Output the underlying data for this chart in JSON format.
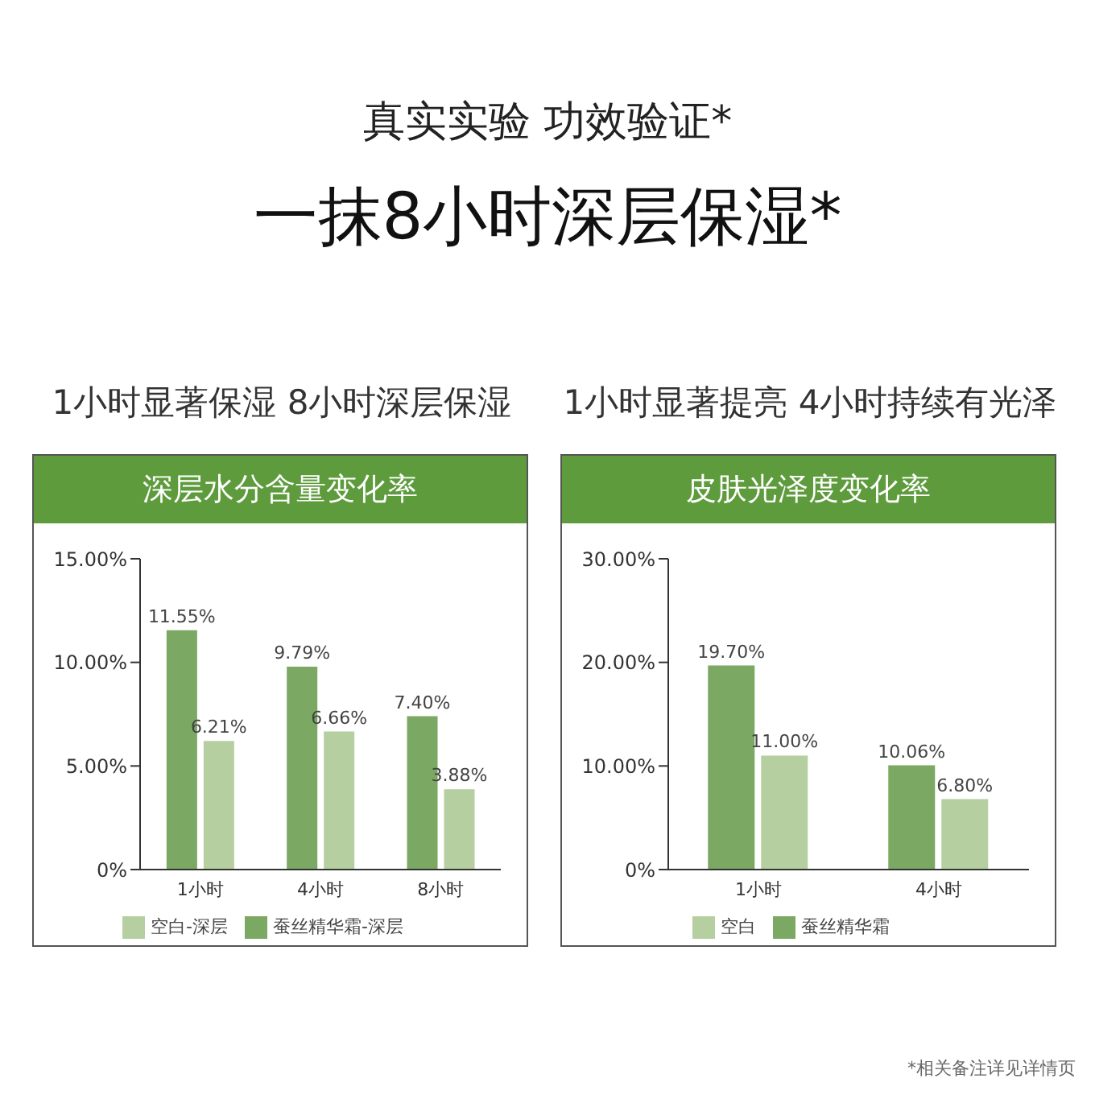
{
  "chart_data": [
    {
      "type": "other",
      "title": "真实实验 功效验证*",
      "subtitle": "一抹8小时深层保湿*"
    },
    {
      "type": "bar",
      "title": "深层水分含量变化率",
      "subtitle": "1小时显著保湿 8小时深层保湿",
      "categories": [
        "1小时",
        "4小时",
        "8小时"
      ],
      "series": [
        {
          "name": "蚕丝精华霜-深层",
          "color": "#7ba862",
          "values": [
            11.55,
            9.79,
            7.4
          ],
          "value_labels": [
            "11.55%",
            "9.79%",
            "7.40%"
          ]
        },
        {
          "name": "空白-深层",
          "color": "#b6cfa0",
          "values": [
            6.21,
            6.66,
            3.88
          ],
          "value_labels": [
            "6.21%",
            "6.66%",
            "3.88%"
          ]
        }
      ],
      "ylim": [
        0,
        15
      ],
      "yticks": [
        {
          "value": 0,
          "label": "0%"
        },
        {
          "value": 5,
          "label": "5.00%"
        },
        {
          "value": 10,
          "label": "10.00%"
        },
        {
          "value": 15,
          "label": "15.00%"
        }
      ],
      "grid": false,
      "legend": "bottom"
    },
    {
      "type": "bar",
      "title": "皮肤光泽度变化率",
      "subtitle": "1小时显著提亮 4小时持续有光泽",
      "categories": [
        "1小时",
        "4小时"
      ],
      "series": [
        {
          "name": "蚕丝精华霜",
          "color": "#7ba862",
          "values": [
            19.7,
            10.06
          ],
          "value_labels": [
            "19.70%",
            "10.06%"
          ]
        },
        {
          "name": "空白",
          "color": "#b6cfa0",
          "values": [
            11.0,
            6.8
          ],
          "value_labels": [
            "11.00%",
            "6.80%"
          ]
        }
      ],
      "ylim": [
        0,
        30
      ],
      "yticks": [
        {
          "value": 0,
          "label": "0%"
        },
        {
          "value": 10,
          "label": "10.00%"
        },
        {
          "value": 20,
          "label": "20.00%"
        },
        {
          "value": 30,
          "label": "30.00%"
        }
      ],
      "grid": false,
      "legend": "bottom",
      "annotations": [
        "*相关备注详见详情页"
      ]
    }
  ]
}
